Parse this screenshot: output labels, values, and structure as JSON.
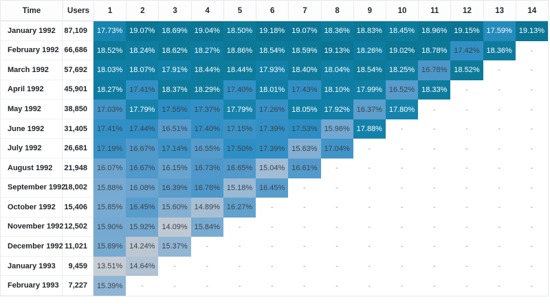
{
  "heatmap": {
    "stops": [
      [
        13.4,
        "#c9ced5"
      ],
      [
        14.3,
        "#bcc7d2"
      ],
      [
        15.0,
        "#a3bdd6"
      ],
      [
        15.7,
        "#80aed3"
      ],
      [
        16.3,
        "#5fa0ce"
      ],
      [
        16.8,
        "#4b97ca"
      ],
      [
        17.2,
        "#3892c7"
      ],
      [
        17.57,
        "#2b8ec5"
      ],
      [
        17.62,
        "#1a86b2"
      ],
      [
        18.0,
        "#107fa6"
      ],
      [
        18.5,
        "#0d7a9a"
      ],
      [
        19.2,
        "#0b7494"
      ]
    ],
    "white_text_min": 17.58,
    "white_text_color": "#ffffff",
    "dark_text_color": "#3f4347"
  },
  "table": {
    "time_header": "Time",
    "users_header": "Users",
    "period_headers": [
      "1",
      "2",
      "3",
      "4",
      "5",
      "6",
      "7",
      "8",
      "9",
      "10",
      "11",
      "12",
      "13",
      "14"
    ],
    "empty_marker": "-",
    "rows": [
      {
        "time": "January 1992",
        "users": "87,109",
        "values": [
          17.73,
          19.07,
          18.69,
          19.04,
          18.5,
          19.18,
          19.07,
          18.36,
          18.83,
          18.45,
          18.96,
          19.15,
          17.59,
          19.13
        ]
      },
      {
        "time": "February 1992",
        "users": "66,686",
        "values": [
          18.52,
          18.24,
          18.62,
          18.27,
          18.86,
          18.54,
          18.59,
          19.13,
          18.26,
          19.02,
          18.78,
          17.42,
          18.36,
          null
        ]
      },
      {
        "time": "March 1992",
        "users": "57,692",
        "values": [
          18.03,
          18.07,
          17.91,
          18.44,
          18.44,
          17.93,
          18.4,
          18.04,
          18.54,
          18.25,
          16.78,
          18.52,
          null,
          null
        ]
      },
      {
        "time": "April 1992",
        "users": "45,901",
        "values": [
          18.27,
          17.41,
          18.37,
          18.29,
          17.4,
          18.01,
          17.43,
          18.1,
          17.99,
          16.52,
          18.33,
          null,
          null,
          null
        ]
      },
      {
        "time": "May 1992",
        "users": "38,850",
        "values": [
          17.03,
          17.79,
          17.55,
          17.37,
          17.79,
          17.26,
          18.05,
          17.92,
          16.37,
          17.8,
          null,
          null,
          null,
          null
        ]
      },
      {
        "time": "June 1992",
        "users": "31,405",
        "values": [
          17.41,
          17.44,
          16.51,
          17.4,
          17.15,
          17.39,
          17.53,
          15.96,
          17.88,
          null,
          null,
          null,
          null,
          null
        ]
      },
      {
        "time": "July 1992",
        "users": "26,681",
        "values": [
          17.19,
          16.67,
          17.14,
          16.55,
          17.5,
          17.39,
          15.63,
          17.04,
          null,
          null,
          null,
          null,
          null,
          null
        ]
      },
      {
        "time": "August 1992",
        "users": "21,948",
        "values": [
          16.07,
          16.67,
          16.15,
          16.73,
          16.65,
          15.04,
          16.61,
          null,
          null,
          null,
          null,
          null,
          null,
          null
        ]
      },
      {
        "time": "September 1992",
        "users": "18,002",
        "values": [
          15.88,
          16.08,
          16.39,
          16.76,
          15.18,
          16.45,
          null,
          null,
          null,
          null,
          null,
          null,
          null,
          null
        ]
      },
      {
        "time": "October 1992",
        "users": "15,406",
        "values": [
          15.85,
          16.45,
          15.6,
          14.89,
          16.27,
          null,
          null,
          null,
          null,
          null,
          null,
          null,
          null,
          null
        ]
      },
      {
        "time": "November 1992",
        "users": "12,502",
        "values": [
          15.9,
          15.92,
          14.09,
          15.84,
          null,
          null,
          null,
          null,
          null,
          null,
          null,
          null,
          null,
          null
        ]
      },
      {
        "time": "December 1992",
        "users": "11,021",
        "values": [
          15.89,
          14.24,
          15.37,
          null,
          null,
          null,
          null,
          null,
          null,
          null,
          null,
          null,
          null,
          null
        ]
      },
      {
        "time": "January 1993",
        "users": "9,459",
        "values": [
          13.51,
          14.64,
          null,
          null,
          null,
          null,
          null,
          null,
          null,
          null,
          null,
          null,
          null,
          null
        ]
      },
      {
        "time": "February 1993",
        "users": "7,227",
        "values": [
          15.39,
          null,
          null,
          null,
          null,
          null,
          null,
          null,
          null,
          null,
          null,
          null,
          null,
          null
        ]
      }
    ]
  }
}
